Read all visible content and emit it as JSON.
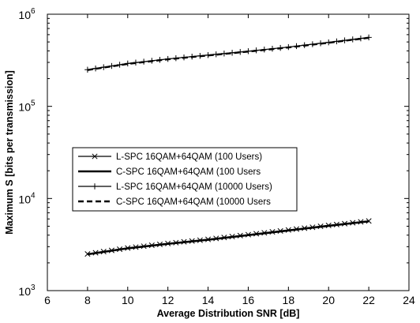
{
  "chart_data": {
    "type": "line",
    "title": "",
    "xlabel": "Average Distribution SNR [dB]",
    "ylabel": "Maximum S [bits per transmission]",
    "xlim": [
      6,
      24
    ],
    "ylim": [
      1000,
      1000000
    ],
    "yscale": "log",
    "x_ticks": [
      "6",
      "8",
      "10",
      "12",
      "14",
      "16",
      "18",
      "20",
      "22",
      "24"
    ],
    "y_ticks": [
      {
        "base": "10",
        "exp": "3"
      },
      {
        "base": "10",
        "exp": "4"
      },
      {
        "base": "10",
        "exp": "5"
      },
      {
        "base": "10",
        "exp": "6"
      }
    ],
    "grid": false,
    "legend_position": "middle-left",
    "x": [
      8,
      10,
      12,
      14,
      16,
      18,
      20,
      22
    ],
    "series": [
      {
        "name": "L-SPC 16QAM+64QAM (100 Users)",
        "marker": "x",
        "line": "solid",
        "values": [
          2500,
          2900,
          3250,
          3600,
          4050,
          4550,
          5100,
          5700
        ]
      },
      {
        "name": "C-SPC 16QAM+64QAM (100 Users",
        "marker": "none",
        "line": "thick",
        "values": [
          2480,
          2880,
          3220,
          3570,
          4000,
          4500,
          5050,
          5650
        ]
      },
      {
        "name": "L-SPC 16QAM+64QAM (10000 Users)",
        "marker": "+",
        "line": "solid",
        "values": [
          250000,
          292000,
          327000,
          360000,
          397000,
          440000,
          495000,
          560000
        ]
      },
      {
        "name": "C-SPC 16QAM+64QAM (10000 Users",
        "marker": "none",
        "line": "dashed",
        "values": [
          248000,
          289000,
          324000,
          357000,
          393000,
          436000,
          490000,
          555000
        ]
      }
    ]
  }
}
